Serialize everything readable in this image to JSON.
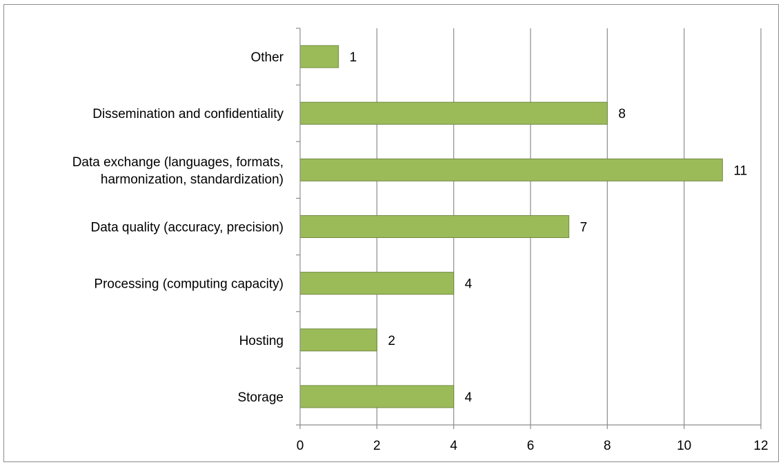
{
  "chart_data": {
    "type": "bar",
    "orientation": "horizontal",
    "categories": [
      [
        "Storage"
      ],
      [
        "Hosting"
      ],
      [
        "Processing (computing capacity)"
      ],
      [
        "Data quality (accuracy, precision)"
      ],
      [
        "Data exchange (languages, formats,",
        "harmonization, standardization)"
      ],
      [
        "Dissemination and confidentiality"
      ],
      [
        "Other"
      ]
    ],
    "values": [
      4,
      2,
      4,
      7,
      11,
      8,
      1
    ],
    "xlim": [
      0,
      12
    ],
    "xticks": [
      "0",
      "2",
      "4",
      "6",
      "8",
      "10",
      "12"
    ],
    "title": "",
    "xlabel": "",
    "ylabel": "",
    "grid": "vertical major gridlines",
    "legend": "none",
    "bar_color": "#9bbb59",
    "bar_edge_color": "#71893f"
  }
}
